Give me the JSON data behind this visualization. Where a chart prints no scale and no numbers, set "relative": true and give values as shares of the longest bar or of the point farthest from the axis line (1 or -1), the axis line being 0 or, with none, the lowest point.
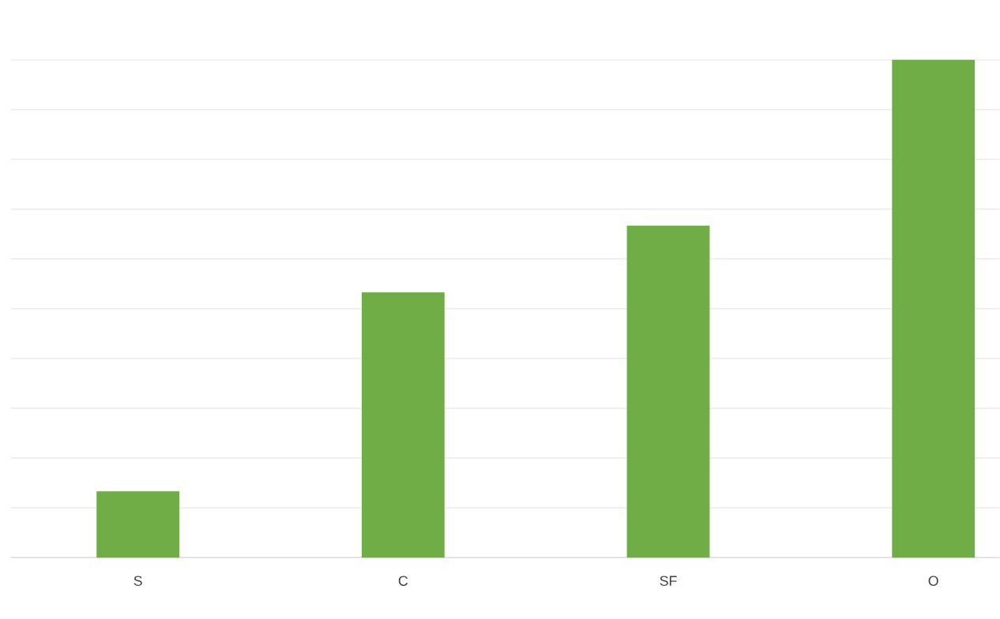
{
  "chart_data": {
    "type": "bar",
    "relative": true,
    "categories": [
      "S",
      "C",
      "SF",
      "O"
    ],
    "values": [
      0.133,
      0.533,
      0.667,
      1.0
    ],
    "color": "#70ad47",
    "grid": "y"
  }
}
